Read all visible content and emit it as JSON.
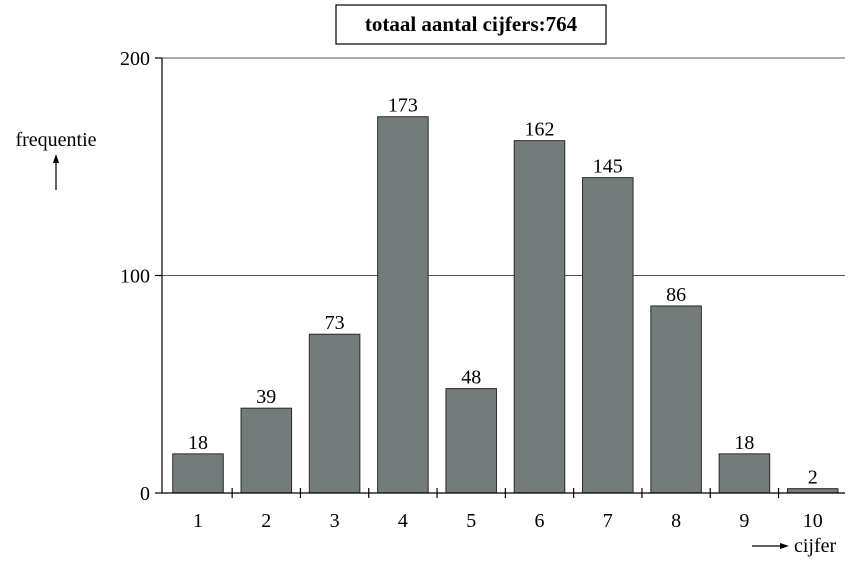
{
  "chart_data": {
    "type": "bar",
    "title": "totaal aantal cijfers:764",
    "xlabel": "cijfer",
    "ylabel": "frequentie",
    "categories": [
      "1",
      "2",
      "3",
      "4",
      "5",
      "6",
      "7",
      "8",
      "9",
      "10"
    ],
    "values": [
      18,
      39,
      73,
      173,
      48,
      162,
      145,
      86,
      18,
      2
    ],
    "ylim": [
      0,
      200
    ],
    "yticks": [
      "0",
      "100",
      "200"
    ],
    "grid": true,
    "legend": "none"
  },
  "colors": {
    "bar_fill": "#737b7b",
    "bar_stroke": "#2a2a2a",
    "axis": "#000000",
    "grid": "#555555"
  }
}
